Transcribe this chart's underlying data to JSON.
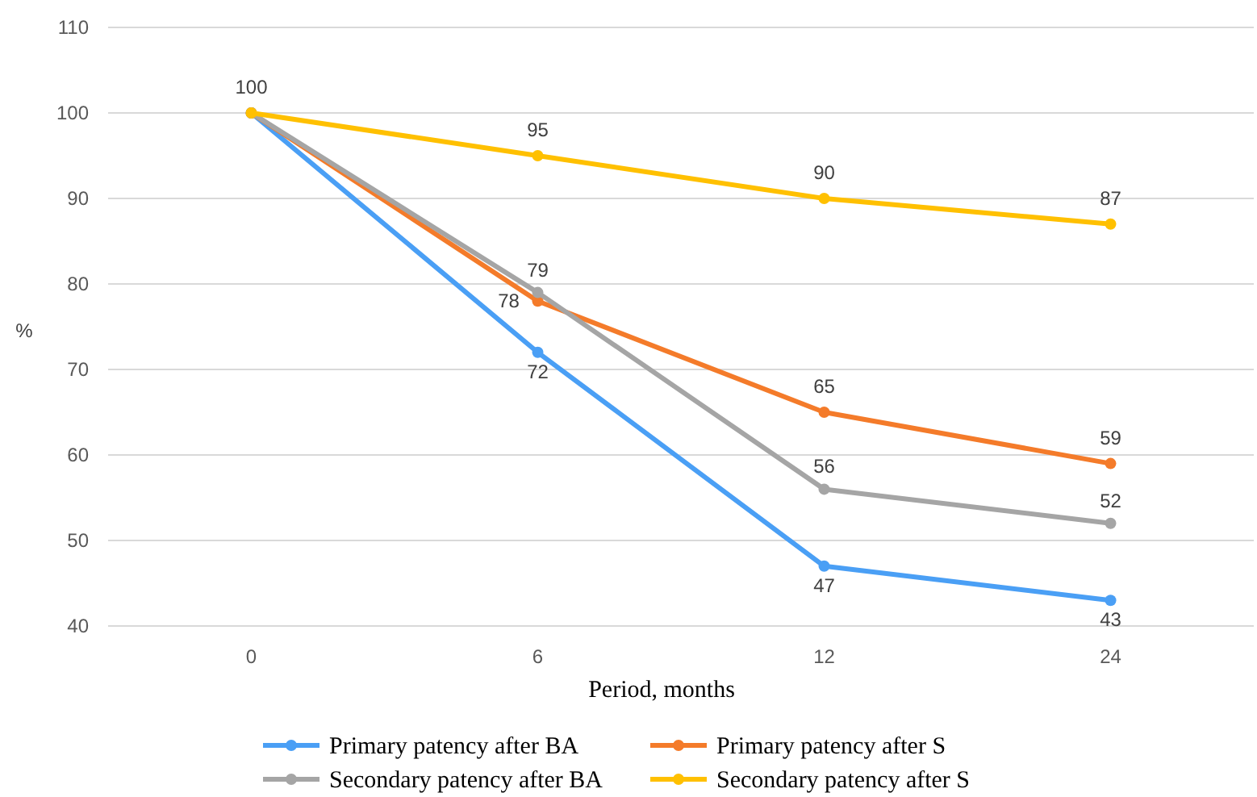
{
  "chart_data": {
    "type": "line",
    "xlabel": "Period, months",
    "ylabel": "%",
    "categories": [
      "0",
      "6",
      "12",
      "24"
    ],
    "ylim": [
      40,
      110
    ],
    "yticks": [
      40,
      50,
      60,
      70,
      80,
      90,
      100,
      110
    ],
    "grid": "y",
    "legend": "bottom",
    "marker": "circle",
    "line_style": "solid",
    "series": [
      {
        "name": "Primary patency after BA",
        "color": "#4a9ff5",
        "values": [
          100,
          72,
          47,
          43
        ],
        "value_labels": [
          null,
          "72",
          "47",
          "43"
        ]
      },
      {
        "name": "Primary patency after S",
        "color": "#f47b2a",
        "values": [
          100,
          78,
          65,
          59
        ],
        "value_labels": [
          null,
          "78",
          "65",
          "59"
        ]
      },
      {
        "name": "Secondary patency after BA",
        "color": "#a5a5a5",
        "values": [
          100,
          79,
          56,
          52
        ],
        "value_labels": [
          null,
          "79",
          "56",
          "52"
        ]
      },
      {
        "name": "Secondary patency after S",
        "color": "#ffc000",
        "values": [
          100,
          95,
          90,
          87
        ],
        "value_labels": [
          "100",
          "95",
          "90",
          "87"
        ]
      }
    ]
  }
}
